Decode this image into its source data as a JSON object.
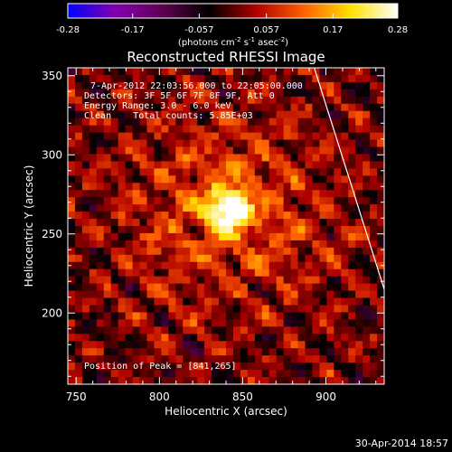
{
  "chart_data": {
    "type": "heatmap",
    "title": "Reconstructed RHESSI Image",
    "xlabel": "Heliocentric X (arcsec)",
    "ylabel": "Heliocentric Y (arcsec)",
    "xlim": [
      745,
      935
    ],
    "ylim": [
      155,
      355
    ],
    "x_ticks": [
      "750",
      "800",
      "850",
      "900"
    ],
    "x_tick_values": [
      750,
      800,
      850,
      900
    ],
    "y_ticks": [
      "200",
      "250",
      "300",
      "350"
    ],
    "y_tick_values": [
      200,
      250,
      300,
      350
    ],
    "colorbar": {
      "ticks": [
        "-0.28",
        "-0.17",
        "-0.057",
        "0.057",
        "0.17",
        "0.28"
      ],
      "tick_values": [
        -0.28,
        -0.17,
        -0.057,
        0.057,
        0.17,
        0.28
      ],
      "range": [
        -0.28,
        0.28
      ],
      "units_prefix": "(photons cm",
      "units_exp1": "-2",
      "units_mid": " s",
      "units_exp2": "-1",
      "units_mid2": " asec",
      "units_exp3": "-2",
      "units_suffix": ")",
      "colors": [
        "#0000ff",
        "#8000b0",
        "#600050",
        "#000000",
        "#b00000",
        "#ff6000",
        "#ffe000",
        "#ffffff"
      ]
    },
    "peak": [
      841,
      265
    ],
    "peak_value": 0.28,
    "limb_line": [
      [
        893,
        355
      ],
      [
        935,
        215
      ]
    ],
    "grid": false
  },
  "annotations": {
    "time_range": "7-Apr-2012 22:03:56.000 to 22:05:00.000",
    "detectors": "Detectors: 3F 5F 6F 7F 8F 9F, Att 0",
    "energy": "Energy Range: 3.0 - 6.0 keV",
    "clean": "Clean    Total counts: 5.85E+03",
    "peak_position": "Position of Peak = [841,265]",
    "date_stamp": "30-Apr-2014 18:57"
  }
}
